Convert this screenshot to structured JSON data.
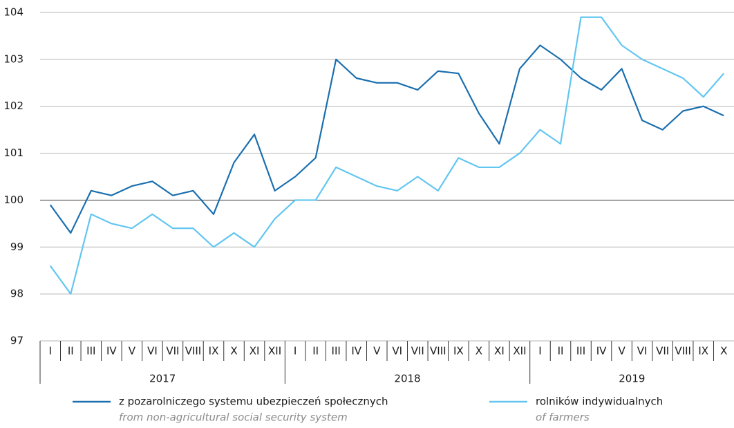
{
  "chart_data": {
    "type": "line",
    "categories": [
      "I",
      "II",
      "III",
      "IV",
      "V",
      "VI",
      "VII",
      "VIII",
      "IX",
      "X",
      "XI",
      "XII",
      "I",
      "II",
      "III",
      "IV",
      "V",
      "VI",
      "VII",
      "VIII",
      "IX",
      "X",
      "XI",
      "XII",
      "I",
      "II",
      "III",
      "IV",
      "V",
      "VI",
      "VII",
      "VIII",
      "IX",
      "X"
    ],
    "x_groups": [
      "2017",
      "2018",
      "2019"
    ],
    "series": [
      {
        "name": "z pozarolniczego systemu ubezpieczeń społecznych",
        "name_en": "from non-agricultural social security system",
        "color": "#1a6faf",
        "values": [
          99.9,
          99.3,
          100.2,
          100.1,
          100.3,
          100.4,
          100.1,
          100.2,
          99.7,
          100.8,
          101.4,
          100.2,
          100.5,
          100.9,
          103.0,
          102.6,
          102.5,
          102.5,
          102.35,
          102.75,
          102.7,
          101.85,
          101.2,
          102.8,
          103.3,
          103.0,
          102.6,
          102.35,
          102.8,
          101.7,
          101.5,
          101.9,
          102.0,
          101.8
        ]
      },
      {
        "name": "rolników indywidualnych",
        "name_en": "of farmers",
        "color": "#62c6f0",
        "values": [
          98.6,
          98.0,
          99.7,
          99.5,
          99.4,
          99.7,
          99.4,
          99.4,
          99.0,
          99.3,
          99.0,
          99.6,
          100.0,
          100.0,
          100.7,
          100.5,
          100.3,
          100.2,
          100.5,
          100.2,
          100.9,
          100.7,
          100.7,
          101.0,
          101.5,
          101.2,
          103.9,
          103.9,
          103.3,
          103.0,
          102.8,
          102.6,
          102.2,
          102.7
        ]
      }
    ],
    "ylim": [
      97,
      104
    ],
    "yticks": [
      97,
      98,
      99,
      100,
      101,
      102,
      103,
      104
    ],
    "baseline": 100,
    "grid": true
  }
}
